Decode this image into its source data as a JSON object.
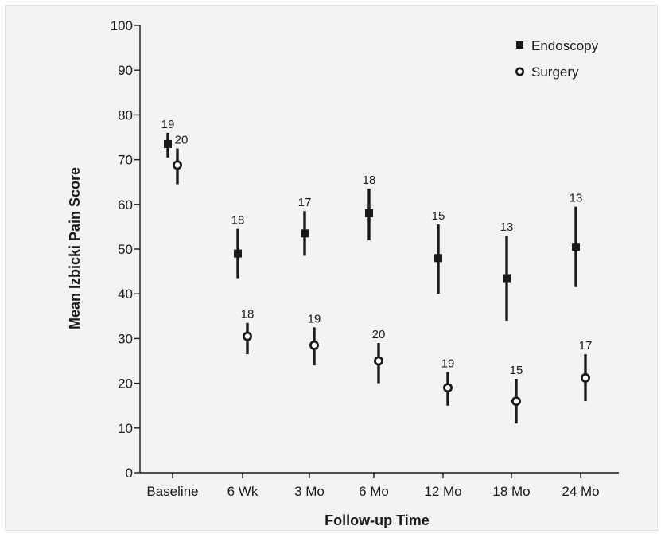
{
  "chart_data": {
    "type": "scatter",
    "xlabel": "Follow-up Time",
    "ylabel": "Mean  Izbicki Pain Score",
    "categories": [
      "Baseline",
      "6 Wk",
      "3 Mo",
      "6 Mo",
      "12 Mo",
      "18 Mo",
      "24 Mo"
    ],
    "ylim": [
      0,
      100
    ],
    "yticks": [
      0,
      10,
      20,
      30,
      40,
      50,
      60,
      70,
      80,
      90,
      100
    ],
    "grid": false,
    "legend_position": "top-right",
    "series": [
      {
        "name": "Endoscopy",
        "marker": "filled-square",
        "color": "#1a1a1a",
        "values": [
          73.5,
          49.0,
          53.5,
          58.0,
          48.0,
          43.5,
          50.5
        ],
        "lower": [
          70.5,
          43.5,
          48.5,
          52.0,
          40.0,
          34.0,
          41.5
        ],
        "upper": [
          76.0,
          54.5,
          58.5,
          63.5,
          55.5,
          53.0,
          59.5
        ],
        "n": [
          "19",
          "18",
          "17",
          "18",
          "15",
          "13",
          "13"
        ]
      },
      {
        "name": "Surgery",
        "marker": "open-circle",
        "color": "#1a1a1a",
        "values": [
          68.8,
          30.5,
          28.5,
          25.0,
          19.0,
          16.0,
          21.2
        ],
        "lower": [
          64.5,
          26.5,
          24.0,
          20.0,
          15.0,
          11.0,
          16.0
        ],
        "upper": [
          72.5,
          33.5,
          32.5,
          29.0,
          22.5,
          21.0,
          26.5
        ],
        "n": [
          "20",
          "18",
          "19",
          "20",
          "19",
          "15",
          "17"
        ]
      }
    ]
  }
}
